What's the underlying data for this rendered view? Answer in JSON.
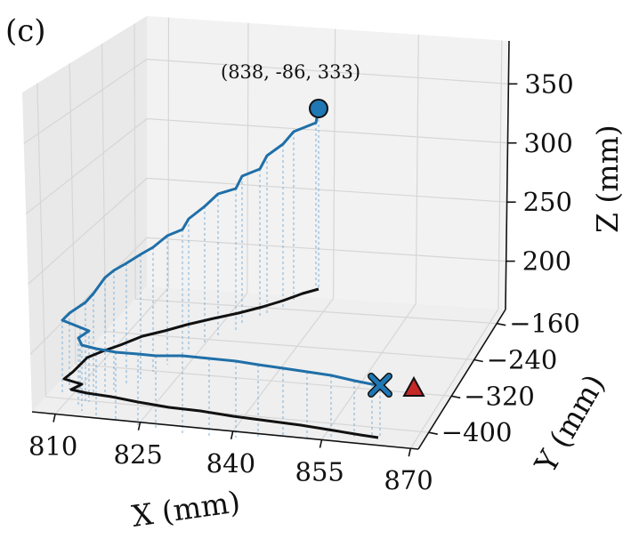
{
  "panel_label": "(c)",
  "chart_data": {
    "type": "line",
    "projection": "3d",
    "xlabel": "X (mm)",
    "ylabel": "Y (mm)",
    "zlabel": "Z (mm)",
    "x_ticks": [
      "810",
      "825",
      "840",
      "855",
      "870"
    ],
    "y_ticks": [
      "−160",
      "−240",
      "−320",
      "−400"
    ],
    "z_ticks": [
      "200",
      "250",
      "300",
      "350"
    ],
    "xlim": [
      808,
      872
    ],
    "ylim": [
      -440,
      -140
    ],
    "zlim": [
      175,
      375
    ],
    "grid": true,
    "annotations": [
      {
        "text": "(838, -86, 333)",
        "x": 838,
        "y": -86,
        "z": 333
      }
    ],
    "markers": [
      {
        "kind": "circle",
        "name": "start",
        "color": "#1f77b4"
      },
      {
        "kind": "x-cross",
        "name": "end",
        "color": "#1f77b4"
      },
      {
        "kind": "triangle",
        "name": "target",
        "color": "#d62728"
      }
    ],
    "colors": {
      "trajectory": "#1f6fa8",
      "projection": "#111111",
      "droplines": "#7fb2da",
      "target": "#c62828"
    }
  }
}
